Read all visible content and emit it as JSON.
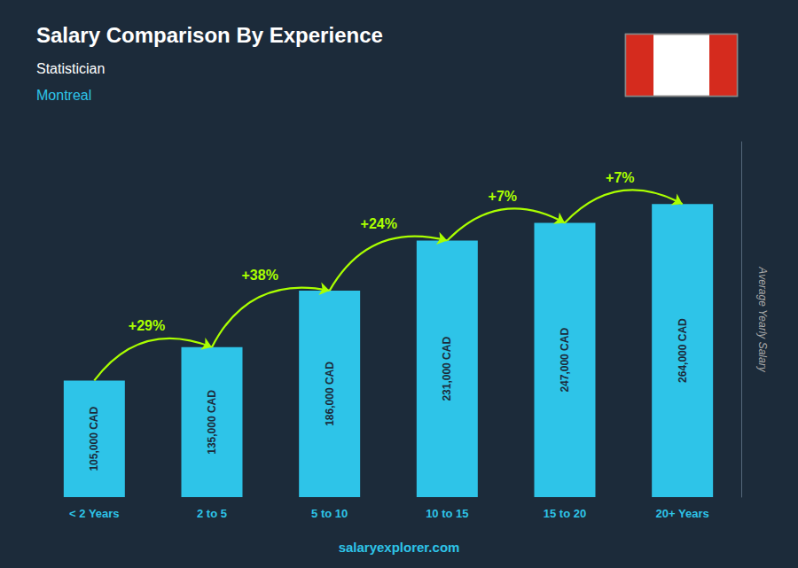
{
  "chart_data": {
    "type": "bar",
    "title": "Salary Comparison By Experience",
    "subtitle": [
      "Statistician",
      "Montreal"
    ],
    "ylabel": "Average Yearly Salary",
    "categories": [
      "< 2 Years",
      "2 to 5",
      "5 to 10",
      "10 to 15",
      "15 to 20",
      "20+ Years"
    ],
    "values": [
      105000,
      135000,
      186000,
      231000,
      247000,
      264000
    ],
    "value_labels": [
      "105,000 CAD",
      "135,000 CAD",
      "186,000 CAD",
      "231,000 CAD",
      "247,000 CAD",
      "264,000 CAD"
    ],
    "data_labels": true,
    "annotations": [
      "+29%",
      "+38%",
      "+24%",
      "+7%",
      "+7%"
    ],
    "footer": "salaryexplorer.com",
    "color": "#2ec4e8",
    "ylim": [
      0,
      320000
    ],
    "grid": false,
    "tick_labels": "x"
  }
}
